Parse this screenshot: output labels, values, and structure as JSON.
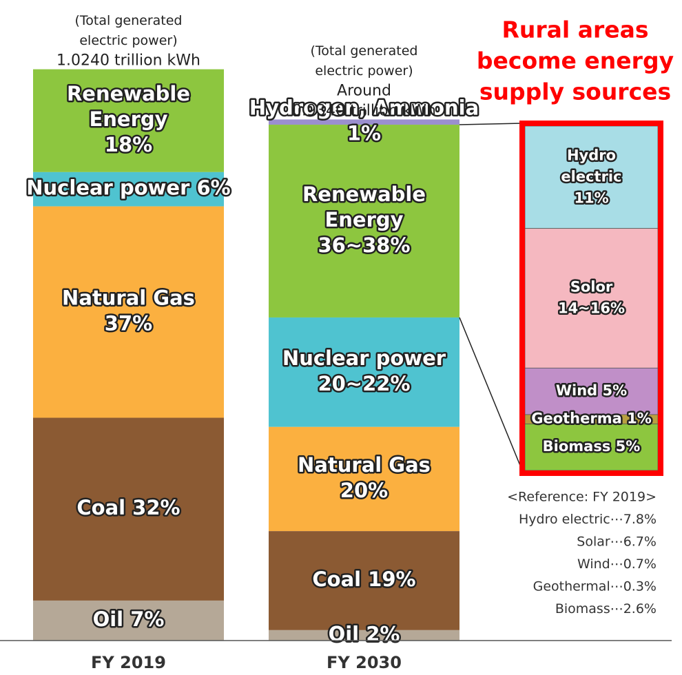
{
  "title_lines": [
    "Rural areas",
    "become energy",
    "supply sources"
  ],
  "bars": [
    {
      "category": "FY 2019",
      "total": 1.024,
      "total_lines": [
        "(Total generated",
        "electric power)",
        "1.0240 trillion kWh"
      ],
      "segments": [
        {
          "lines": [
            "Renewable",
            "Energy",
            "18%"
          ],
          "value": 18,
          "color": "#8dc63f"
        },
        {
          "lines": [
            "Nuclear power  6%"
          ],
          "value": 6,
          "color": "#4fc3d0"
        },
        {
          "lines": [
            "Natural Gas",
            "37%"
          ],
          "value": 37,
          "color": "#fbb040"
        },
        {
          "lines": [
            "Coal 32%"
          ],
          "value": 32,
          "color": "#8b5a33"
        },
        {
          "lines": [
            "Oil 7%"
          ],
          "value": 7,
          "color": "#b5a897"
        }
      ]
    },
    {
      "category": "FY 2030",
      "total": 0.934,
      "total_lines": [
        "(Total generated",
        "electric power)",
        "Around",
        "0.9340 trillion kWh"
      ],
      "segments": [
        {
          "lines": [
            "Hydrogen, Ammonia",
            "1%"
          ],
          "value": 1,
          "color": "#9b8fcf"
        },
        {
          "lines": [
            "Renewable",
            "Energy",
            "36~38%"
          ],
          "value": 37,
          "color": "#8dc63f"
        },
        {
          "lines": [
            "Nuclear power",
            "20~22%"
          ],
          "value": 21,
          "color": "#4fc3d0"
        },
        {
          "lines": [
            "Natural Gas",
            "20%"
          ],
          "value": 20,
          "color": "#fbb040"
        },
        {
          "lines": [
            "Coal 19%"
          ],
          "value": 19,
          "color": "#8b5a33"
        },
        {
          "lines": [
            "Oil 2%"
          ],
          "value": 2,
          "color": "#b5a897"
        }
      ]
    }
  ],
  "breakdown": {
    "of_bar": 1,
    "of_segment": 1,
    "segments": [
      {
        "lines": [
          "Hydro",
          "electric",
          "11%"
        ],
        "value": 11,
        "color": "#a8dde6"
      },
      {
        "lines": [
          "Solor",
          "14~16%"
        ],
        "value": 15,
        "color": "#f5b8c0"
      },
      {
        "lines": [
          "Wind 5%"
        ],
        "value": 5,
        "color": "#c08fc8"
      },
      {
        "lines": [
          "Geotherma 1%"
        ],
        "value": 1,
        "color": "#b8a040"
      },
      {
        "lines": [
          "Biomass 5%"
        ],
        "value": 5,
        "color": "#8dc63f"
      }
    ]
  },
  "reference_lines": [
    "<Reference: FY 2019>",
    "Hydro electric⋯7.8%",
    "Solar⋯6.7%",
    "Wind⋯0.7%",
    "Geothermal⋯0.3%",
    "Biomass⋯2.6%"
  ]
}
